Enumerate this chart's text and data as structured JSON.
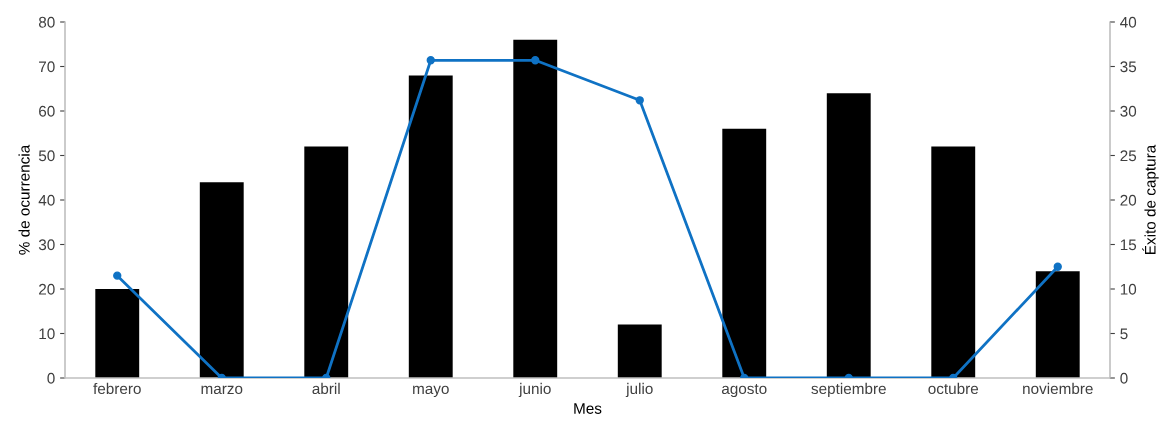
{
  "chart_data": {
    "type": "bar",
    "xlabel": "Mes",
    "ylabel": "% de ocurrencia",
    "y2label": "Éxito de captura",
    "categories": [
      "febrero",
      "marzo",
      "abril",
      "mayo",
      "junio",
      "julio",
      "agosto",
      "septiembre",
      "octubre",
      "noviembre"
    ],
    "series": [
      {
        "color": "#000000",
        "values": [
          20,
          44,
          52,
          68,
          76,
          12,
          56,
          64,
          52,
          24
        ]
      },
      {
        "type": "line",
        "axis": "y2",
        "color": "#0f72c4",
        "marker": "circle",
        "line_style": "solid",
        "values": [
          11.5,
          0,
          0,
          35.7,
          35.7,
          31.2,
          0,
          0,
          0,
          12.5
        ]
      }
    ],
    "ylim": [
      0,
      80
    ],
    "yticks": [
      0,
      10,
      20,
      30,
      40,
      50,
      60,
      70,
      80
    ],
    "y2lim": [
      0,
      40
    ],
    "y2ticks": [
      0,
      5,
      10,
      15,
      20,
      25,
      30,
      35,
      40
    ],
    "grid": false,
    "legend": false
  }
}
